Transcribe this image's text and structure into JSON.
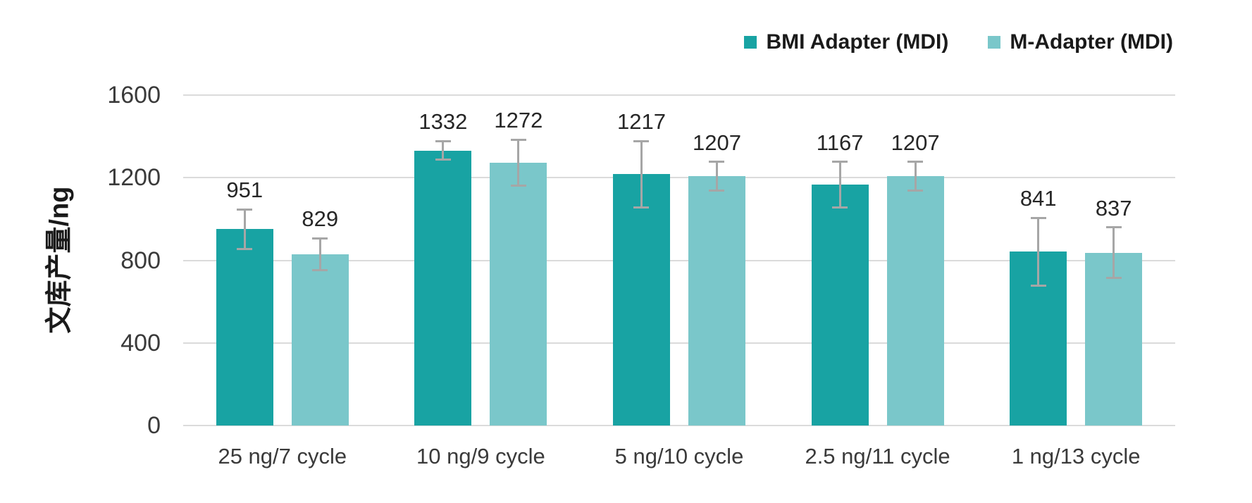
{
  "chart_data": {
    "type": "bar",
    "title": "",
    "categories": [
      "25 ng/7 cycle",
      "10 ng/9 cycle",
      "5 ng/10 cycle",
      "2.5 ng/11 cycle",
      "1 ng/13 cycle"
    ],
    "series": [
      {
        "name": "BMI Adapter (MDI)",
        "color": "#18A3A3",
        "values": [
          951,
          1332,
          1217,
          1167,
          841
        ],
        "errors": [
          95,
          45,
          160,
          110,
          165
        ]
      },
      {
        "name": "M-Adapter (MDI)",
        "color": "#7AC7CA",
        "values": [
          829,
          1272,
          1207,
          1207,
          837
        ],
        "errors": [
          78,
          112,
          70,
          70,
          122
        ]
      }
    ],
    "xlabel": "",
    "ylabel": "文库产量/ng",
    "ylim": [
      0,
      1600
    ],
    "yticks": [
      0,
      400,
      800,
      1200,
      1600
    ],
    "grid": "horizontal",
    "legend_position": "top-right",
    "data_labels": true,
    "error_bar_color": "#A6A6A6",
    "gridline_color": "#DBDBDB",
    "background_color": "#FFFFFF"
  }
}
